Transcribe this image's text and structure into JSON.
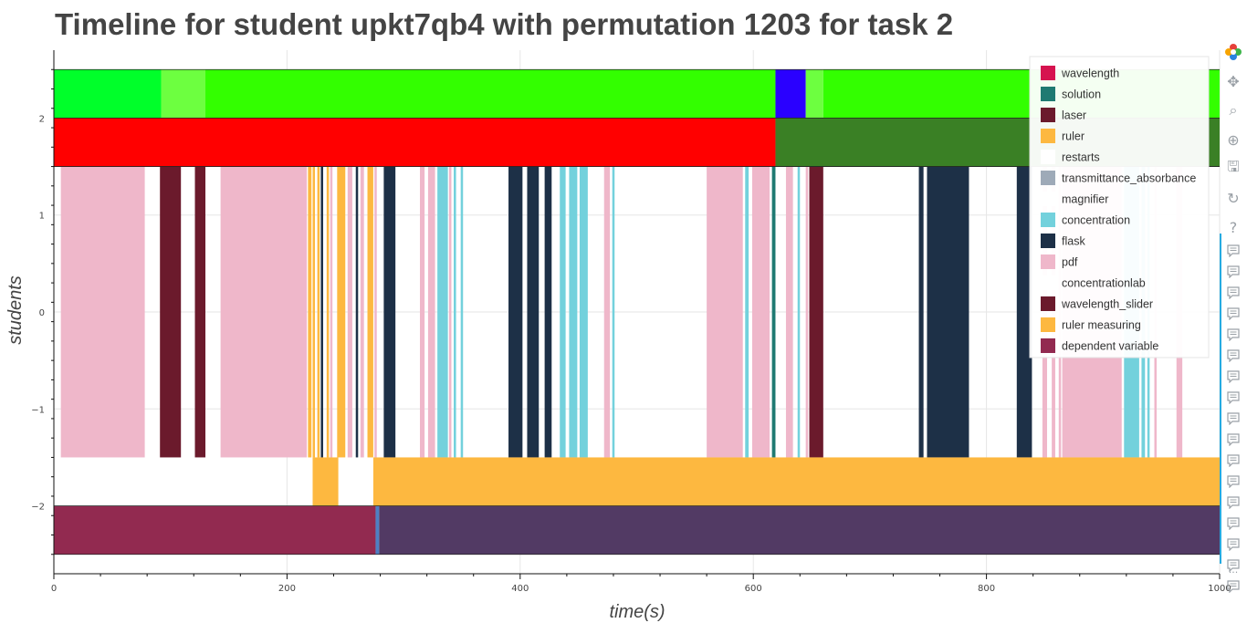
{
  "chart_data": {
    "type": "timeline",
    "title": "Timeline for student upkt7qb4 with permutation 1203 for task 2",
    "xlabel": "time(s)",
    "ylabel": "students",
    "xlim": [
      0,
      1000
    ],
    "ylim": [
      -2.7,
      2.7
    ],
    "x_ticks": [
      0,
      200,
      400,
      600,
      800,
      1000
    ],
    "y_ticks": [
      -2,
      -1,
      0,
      1,
      2
    ],
    "y_tick_labels": [
      "−2",
      "−1",
      "0",
      "1",
      "2"
    ],
    "legend_position": "top-right",
    "legend": [
      {
        "name": "wavelength",
        "color": "#d6134f"
      },
      {
        "name": "solution",
        "color": "#1f7a72"
      },
      {
        "name": "laser",
        "color": "#6b1a2c"
      },
      {
        "name": "ruler",
        "color": "#fdb840"
      },
      {
        "name": "restarts",
        "color": "#ffffff"
      },
      {
        "name": "transmittance_absorbance",
        "color": "#9eaab8"
      },
      {
        "name": "magnifier",
        "color": "#ffffff"
      },
      {
        "name": "concentration",
        "color": "#73d1dc"
      },
      {
        "name": "flask",
        "color": "#1d3047"
      },
      {
        "name": "pdf",
        "color": "#efb7ca"
      },
      {
        "name": "concentrationlab",
        "color": "#ffffff"
      },
      {
        "name": "wavelength_slider",
        "color": "#6b1a2c"
      },
      {
        "name": "ruler measuring",
        "color": "#fdb840"
      },
      {
        "name": "dependent variable",
        "color": "#922a50"
      }
    ],
    "rows": [
      {
        "y_range": [
          2,
          2.5
        ],
        "segments": [
          {
            "x0": 0,
            "x1": 92,
            "color": "#00ff2a"
          },
          {
            "x0": 92,
            "x1": 130,
            "color": "#6dff40"
          },
          {
            "x0": 130,
            "x1": 619,
            "color": "#33ff00"
          },
          {
            "x0": 619,
            "x1": 645,
            "color": "#2a00ff"
          },
          {
            "x0": 645,
            "x1": 660,
            "color": "#6dff40"
          },
          {
            "x0": 660,
            "x1": 1000,
            "color": "#33ff00"
          }
        ]
      },
      {
        "y_range": [
          1.5,
          2
        ],
        "segments": [
          {
            "x0": 0,
            "x1": 619,
            "color": "#ff0000"
          },
          {
            "x0": 619,
            "x1": 1000,
            "color": "#3a8025"
          }
        ]
      },
      {
        "y_range": [
          -1.5,
          1.5
        ],
        "segments": [
          {
            "x0": 6,
            "x1": 78,
            "color": "#efb7ca"
          },
          {
            "x0": 91,
            "x1": 109,
            "color": "#6b1a2c"
          },
          {
            "x0": 121,
            "x1": 130,
            "color": "#6b1a2c"
          },
          {
            "x0": 143,
            "x1": 217,
            "color": "#efb7ca"
          },
          {
            "x0": 218,
            "x1": 221,
            "color": "#fdb840"
          },
          {
            "x0": 222,
            "x1": 224,
            "color": "#fdb840"
          },
          {
            "x0": 226,
            "x1": 228,
            "color": "#fdb840"
          },
          {
            "x0": 229,
            "x1": 231,
            "color": "#1d3047"
          },
          {
            "x0": 234,
            "x1": 236,
            "color": "#fdb840"
          },
          {
            "x0": 237,
            "x1": 239,
            "color": "#efb7ca"
          },
          {
            "x0": 243,
            "x1": 250,
            "color": "#fdb840"
          },
          {
            "x0": 252,
            "x1": 256,
            "color": "#efb7ca"
          },
          {
            "x0": 259,
            "x1": 261,
            "color": "#1d3047"
          },
          {
            "x0": 263,
            "x1": 266,
            "color": "#efb7ca"
          },
          {
            "x0": 269,
            "x1": 274,
            "color": "#fdb840"
          },
          {
            "x0": 275,
            "x1": 277,
            "color": "#efb7ca"
          },
          {
            "x0": 283,
            "x1": 293,
            "color": "#1d3047"
          },
          {
            "x0": 314,
            "x1": 318,
            "color": "#efb7ca"
          },
          {
            "x0": 321,
            "x1": 327,
            "color": "#efb7ca"
          },
          {
            "x0": 329,
            "x1": 338,
            "color": "#73d1dc"
          },
          {
            "x0": 339,
            "x1": 341,
            "color": "#efb7ca"
          },
          {
            "x0": 343,
            "x1": 345,
            "color": "#73d1dc"
          },
          {
            "x0": 349,
            "x1": 351,
            "color": "#73d1dc"
          },
          {
            "x0": 390,
            "x1": 402,
            "color": "#1d3047"
          },
          {
            "x0": 406,
            "x1": 416,
            "color": "#1d3047"
          },
          {
            "x0": 421,
            "x1": 427,
            "color": "#1d3047"
          },
          {
            "x0": 434,
            "x1": 439,
            "color": "#73d1dc"
          },
          {
            "x0": 442,
            "x1": 449,
            "color": "#73d1dc"
          },
          {
            "x0": 451,
            "x1": 458,
            "color": "#73d1dc"
          },
          {
            "x0": 472,
            "x1": 477,
            "color": "#efb7ca"
          },
          {
            "x0": 479,
            "x1": 481,
            "color": "#73d1dc"
          },
          {
            "x0": 560,
            "x1": 591,
            "color": "#efb7ca"
          },
          {
            "x0": 593,
            "x1": 596,
            "color": "#73d1dc"
          },
          {
            "x0": 599,
            "x1": 614,
            "color": "#efb7ca"
          },
          {
            "x0": 616,
            "x1": 619,
            "color": "#1f7a72"
          },
          {
            "x0": 628,
            "x1": 634,
            "color": "#efb7ca"
          },
          {
            "x0": 638,
            "x1": 640,
            "color": "#73d1dc"
          },
          {
            "x0": 645,
            "x1": 647,
            "color": "#efb7ca"
          },
          {
            "x0": 648,
            "x1": 660,
            "color": "#6b1a2c"
          },
          {
            "x0": 742,
            "x1": 746,
            "color": "#1d3047"
          },
          {
            "x0": 749,
            "x1": 785,
            "color": "#1d3047"
          },
          {
            "x0": 826,
            "x1": 839,
            "color": "#1d3047"
          },
          {
            "x0": 848,
            "x1": 852,
            "color": "#efb7ca"
          },
          {
            "x0": 856,
            "x1": 859,
            "color": "#efb7ca"
          },
          {
            "x0": 862,
            "x1": 864,
            "color": "#efb7ca"
          },
          {
            "x0": 865,
            "x1": 916,
            "color": "#efb7ca"
          },
          {
            "x0": 918,
            "x1": 931,
            "color": "#73d1dc"
          },
          {
            "x0": 933,
            "x1": 936,
            "color": "#73d1dc"
          },
          {
            "x0": 938,
            "x1": 940,
            "color": "#73d1dc"
          },
          {
            "x0": 944,
            "x1": 946,
            "color": "#efb7ca"
          },
          {
            "x0": 963,
            "x1": 968,
            "color": "#efb7ca"
          }
        ]
      },
      {
        "y_range": [
          -2,
          -1.5
        ],
        "segments": [
          {
            "x0": 222,
            "x1": 244,
            "color": "#fdb840"
          },
          {
            "x0": 274,
            "x1": 1000,
            "color": "#fdb840"
          }
        ]
      },
      {
        "y_range": [
          -2.5,
          -2
        ],
        "segments": [
          {
            "x0": 0,
            "x1": 276,
            "color": "#922a50"
          },
          {
            "x0": 276,
            "x1": 279,
            "color": "#4d7fc4"
          },
          {
            "x0": 279,
            "x1": 1000,
            "color": "#523a64"
          }
        ]
      }
    ]
  },
  "toolbar": {
    "tools": [
      {
        "name": "bokeh-logo-icon",
        "glyph": "✿"
      },
      {
        "name": "pan-icon",
        "glyph": "✥"
      },
      {
        "name": "box-zoom-icon",
        "glyph": "⌕"
      },
      {
        "name": "wheel-zoom-icon",
        "glyph": "⊕"
      },
      {
        "name": "save-icon",
        "glyph": "🖫"
      },
      {
        "name": "reset-icon",
        "glyph": "↻"
      },
      {
        "name": "help-icon",
        "glyph": "?"
      }
    ],
    "hover_count": 17,
    "more_label": "···"
  }
}
